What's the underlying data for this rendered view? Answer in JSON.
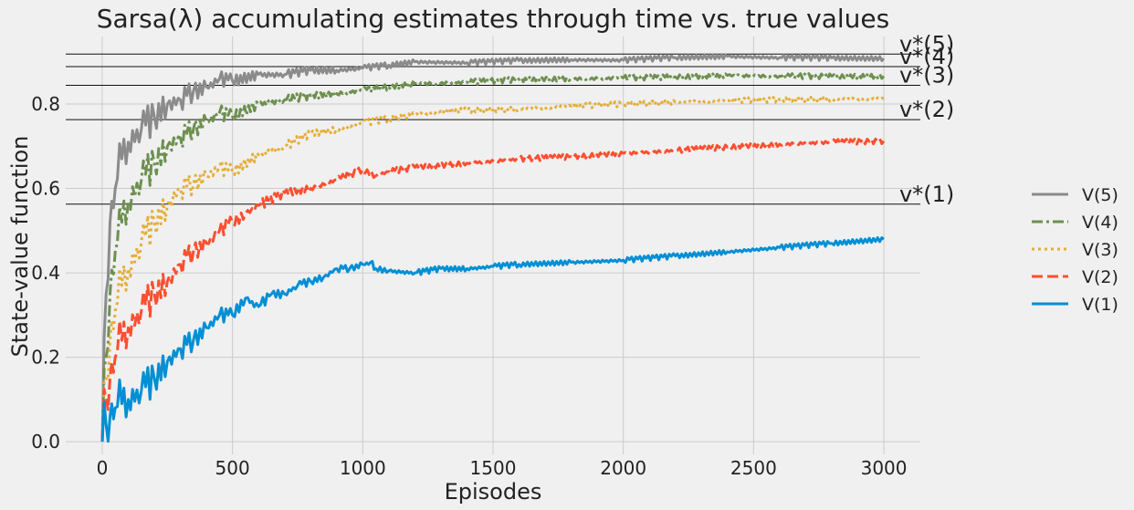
{
  "chart_data": {
    "type": "line",
    "title": "Sarsa(λ) accumulating estimates through time vs. true values",
    "xlabel": "Episodes",
    "ylabel": "State-value function",
    "xlim": [
      -140,
      3140
    ],
    "ylim": [
      -0.03,
      0.96
    ],
    "xticks": [
      0,
      500,
      1000,
      1500,
      2000,
      2500,
      3000
    ],
    "yticks": [
      0.0,
      0.2,
      0.4,
      0.6,
      0.8
    ],
    "xtick_labels": [
      "0",
      "500",
      "1000",
      "1500",
      "2000",
      "2500",
      "3000"
    ],
    "ytick_labels": [
      "0.0",
      "0.2",
      "0.4",
      "0.6",
      "0.8"
    ],
    "grid": true,
    "legend_position": "right",
    "reference_lines": [
      {
        "label": "v*(1)",
        "value": 0.5628
      },
      {
        "label": "v*(2)",
        "value": 0.7631
      },
      {
        "label": "v*(3)",
        "value": 0.8443
      },
      {
        "label": "v*(4)",
        "value": 0.8888
      },
      {
        "label": "v*(5)",
        "value": 0.9183
      }
    ],
    "series": [
      {
        "name": "V(5)",
        "color": "#8b8b8b",
        "dash": "solid",
        "x": [
          0,
          15,
          30,
          50,
          75,
          100,
          150,
          200,
          250,
          300,
          350,
          400,
          450,
          500,
          600,
          700,
          800,
          900,
          1000,
          1100,
          1200,
          1400,
          1600,
          1800,
          2000,
          2200,
          2400,
          2600,
          2800,
          3000
        ],
        "y": [
          0.0,
          0.35,
          0.52,
          0.6,
          0.67,
          0.71,
          0.74,
          0.77,
          0.8,
          0.81,
          0.83,
          0.84,
          0.86,
          0.855,
          0.87,
          0.87,
          0.88,
          0.88,
          0.885,
          0.892,
          0.9,
          0.898,
          0.903,
          0.905,
          0.904,
          0.91,
          0.913,
          0.91,
          0.909,
          0.908
        ]
      },
      {
        "name": "V(4)",
        "color": "#6d904f",
        "dash": "dashdot",
        "x": [
          0,
          15,
          30,
          50,
          75,
          100,
          150,
          200,
          250,
          300,
          350,
          400,
          450,
          500,
          600,
          700,
          800,
          900,
          1000,
          1100,
          1200,
          1400,
          1600,
          1800,
          2000,
          2200,
          2400,
          2600,
          2800,
          3000
        ],
        "y": [
          0.0,
          0.2,
          0.35,
          0.45,
          0.52,
          0.57,
          0.62,
          0.66,
          0.7,
          0.72,
          0.74,
          0.76,
          0.78,
          0.77,
          0.8,
          0.81,
          0.82,
          0.825,
          0.833,
          0.84,
          0.848,
          0.852,
          0.858,
          0.86,
          0.862,
          0.864,
          0.868,
          0.866,
          0.866,
          0.866
        ]
      },
      {
        "name": "V(3)",
        "color": "#e5ae38",
        "dash": "dotted",
        "x": [
          0,
          15,
          30,
          50,
          75,
          100,
          150,
          200,
          250,
          300,
          350,
          400,
          450,
          500,
          600,
          700,
          800,
          900,
          1000,
          1100,
          1200,
          1300,
          1400,
          1600,
          1800,
          2000,
          2200,
          2400,
          2600,
          2800,
          3000
        ],
        "y": [
          0.0,
          0.15,
          0.24,
          0.31,
          0.37,
          0.41,
          0.47,
          0.52,
          0.56,
          0.6,
          0.61,
          0.63,
          0.65,
          0.64,
          0.68,
          0.7,
          0.73,
          0.74,
          0.755,
          0.765,
          0.775,
          0.783,
          0.785,
          0.788,
          0.795,
          0.8,
          0.805,
          0.808,
          0.81,
          0.812,
          0.813
        ]
      },
      {
        "name": "V(2)",
        "color": "#fc4f30",
        "dash": "dashed",
        "x": [
          0,
          15,
          30,
          50,
          75,
          100,
          150,
          200,
          250,
          300,
          350,
          400,
          450,
          500,
          550,
          600,
          700,
          800,
          900,
          1000,
          1050,
          1100,
          1200,
          1400,
          1600,
          1800,
          2000,
          2200,
          2400,
          2600,
          2800,
          3000
        ],
        "y": [
          0.0,
          0.1,
          0.15,
          0.2,
          0.24,
          0.27,
          0.31,
          0.35,
          0.38,
          0.42,
          0.45,
          0.47,
          0.5,
          0.52,
          0.54,
          0.56,
          0.59,
          0.6,
          0.62,
          0.645,
          0.63,
          0.64,
          0.65,
          0.66,
          0.67,
          0.675,
          0.683,
          0.69,
          0.698,
          0.705,
          0.71,
          0.712
        ]
      },
      {
        "name": "V(1)",
        "color": "#008fd5",
        "dash": "solid",
        "x": [
          0,
          15,
          30,
          50,
          75,
          100,
          150,
          200,
          250,
          300,
          350,
          400,
          450,
          500,
          550,
          600,
          650,
          700,
          750,
          800,
          850,
          900,
          950,
          1000,
          1030,
          1050,
          1100,
          1200,
          1300,
          1400,
          1500,
          1600,
          1800,
          2000,
          2200,
          2400,
          2600,
          2800,
          3000
        ],
        "y": [
          0.0,
          0.04,
          0.06,
          0.08,
          0.09,
          0.1,
          0.12,
          0.15,
          0.19,
          0.22,
          0.24,
          0.27,
          0.3,
          0.3,
          0.34,
          0.32,
          0.35,
          0.35,
          0.37,
          0.38,
          0.39,
          0.41,
          0.41,
          0.42,
          0.425,
          0.41,
          0.405,
          0.4,
          0.41,
          0.41,
          0.415,
          0.42,
          0.425,
          0.43,
          0.44,
          0.45,
          0.46,
          0.47,
          0.48
        ]
      }
    ]
  }
}
